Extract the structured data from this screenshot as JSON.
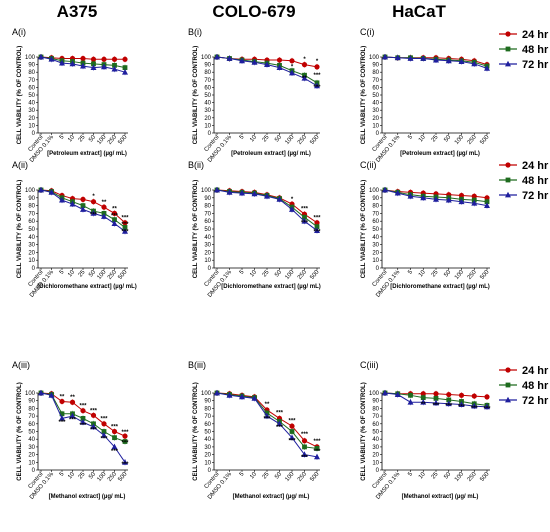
{
  "column_titles": [
    "A375",
    "COLO-679",
    "HaCaT"
  ],
  "legend": [
    {
      "label": "24 hr",
      "color": "#c00000",
      "marker": "circle"
    },
    {
      "label": "48 hr",
      "color": "#1e6b1e",
      "marker": "square"
    },
    {
      "label": "72 hr",
      "color": "#1f1f9e",
      "marker": "triangle"
    }
  ],
  "chart_data": [
    {
      "type": "line",
      "panel": "A(i)",
      "title": "A375",
      "ylabel": "CELL VIABILITY (% OF CONTROL)",
      "xlabel": "[Petroleum extract] (µg/ mL)",
      "categories": [
        "Control",
        "DMSO 0.1%",
        "5",
        "10",
        "25",
        "50",
        "100",
        "250",
        "500"
      ],
      "ylim": [
        0,
        100
      ],
      "yticks": [
        0,
        10,
        20,
        30,
        40,
        50,
        60,
        70,
        80,
        90,
        100
      ],
      "series": [
        {
          "name": "24 hr",
          "values": [
            100,
            99,
            98,
            98,
            98,
            97,
            97,
            97,
            97
          ]
        },
        {
          "name": "48 hr",
          "values": [
            100,
            98,
            95,
            94,
            92,
            91,
            90,
            89,
            86
          ]
        },
        {
          "name": "72 hr",
          "values": [
            100,
            97,
            92,
            91,
            88,
            86,
            87,
            84,
            80
          ]
        }
      ],
      "annotations": []
    },
    {
      "type": "line",
      "panel": "B(i)",
      "title": "COLO-679",
      "ylabel": "CELL VIABILITY (% OF CONTROL)",
      "xlabel": "[Petroleum extract] (µg/ mL)",
      "categories": [
        "Control",
        "DMSO 0.1%",
        "5",
        "10",
        "25",
        "50",
        "100",
        "250",
        "500"
      ],
      "ylim": [
        0,
        100
      ],
      "yticks": [
        0,
        10,
        20,
        30,
        40,
        50,
        60,
        70,
        80,
        90,
        100
      ],
      "series": [
        {
          "name": "24 hr",
          "values": [
            100,
            98,
            97,
            97,
            96,
            96,
            95,
            90,
            87
          ]
        },
        {
          "name": "48 hr",
          "values": [
            100,
            98,
            96,
            94,
            92,
            89,
            82,
            76,
            66
          ]
        },
        {
          "name": "72 hr",
          "values": [
            100,
            98,
            95,
            93,
            90,
            86,
            79,
            72,
            62
          ]
        }
      ],
      "annotations": [
        {
          "i": 6,
          "y": 85,
          "t": "*"
        },
        {
          "i": 7,
          "y": 95,
          "t": "*"
        },
        {
          "i": 7,
          "y": 70,
          "t": "**"
        },
        {
          "i": 8,
          "y": 92,
          "t": "*"
        },
        {
          "i": 8,
          "y": 74,
          "t": "***"
        },
        {
          "i": 8,
          "y": 58,
          "t": "***"
        }
      ]
    },
    {
      "type": "line",
      "panel": "C(i)",
      "title": "HaCaT",
      "ylabel": "CELL VIABILITY (% OF CONTROL)",
      "xlabel": "[Petroleum extract] (µg/ mL)",
      "categories": [
        "Control",
        "DMSO 0.1%",
        "5",
        "10",
        "25",
        "50",
        "100",
        "250",
        "500"
      ],
      "ylim": [
        0,
        100
      ],
      "yticks": [
        0,
        10,
        20,
        30,
        40,
        50,
        60,
        70,
        80,
        90,
        100
      ],
      "series": [
        {
          "name": "24 hr",
          "values": [
            100,
            99,
            99,
            99,
            99,
            98,
            97,
            95,
            90
          ]
        },
        {
          "name": "48 hr",
          "values": [
            100,
            99,
            99,
            98,
            97,
            96,
            95,
            93,
            88
          ]
        },
        {
          "name": "72 hr",
          "values": [
            100,
            99,
            98,
            98,
            96,
            95,
            94,
            91,
            85
          ]
        }
      ],
      "annotations": []
    },
    {
      "type": "line",
      "panel": "A(ii)",
      "title": "",
      "ylabel": "CELL VIABILITY (% OF CONTROL)",
      "xlabel": "[Dichloromethane extract] (µg/ mL)",
      "categories": [
        "Control",
        "DMSO 0.1%",
        "5",
        "10",
        "25",
        "50",
        "100",
        "250",
        "500"
      ],
      "ylim": [
        0,
        100
      ],
      "yticks": [
        0,
        10,
        20,
        30,
        40,
        50,
        60,
        70,
        80,
        90,
        100
      ],
      "series": [
        {
          "name": "24 hr",
          "values": [
            100,
            99,
            93,
            89,
            88,
            85,
            78,
            70,
            58
          ]
        },
        {
          "name": "48 hr",
          "values": [
            100,
            98,
            90,
            85,
            80,
            73,
            70,
            62,
            52
          ]
        },
        {
          "name": "72 hr",
          "values": [
            100,
            97,
            87,
            82,
            75,
            70,
            66,
            57,
            47
          ]
        }
      ],
      "annotations": [
        {
          "i": 5,
          "y": 90,
          "t": "*"
        },
        {
          "i": 6,
          "y": 82,
          "t": "**"
        },
        {
          "i": 7,
          "y": 74,
          "t": "**"
        },
        {
          "i": 7,
          "y": 65,
          "t": "***"
        },
        {
          "i": 8,
          "y": 62,
          "t": "***"
        },
        {
          "i": 8,
          "y": 54,
          "t": "***"
        },
        {
          "i": 8,
          "y": 44,
          "t": "***"
        },
        {
          "i": 5,
          "y": 66,
          "t": "***"
        }
      ]
    },
    {
      "type": "line",
      "panel": "B(ii)",
      "title": "",
      "ylabel": "CELL VIABILITY (% OF CONTROL)",
      "xlabel": "[Dichloromethane extract] (µg/ mL)",
      "categories": [
        "Control",
        "DMSO 0.1%",
        "5",
        "10",
        "25",
        "50",
        "100",
        "250",
        "500"
      ],
      "ylim": [
        0,
        100
      ],
      "yticks": [
        0,
        10,
        20,
        30,
        40,
        50,
        60,
        70,
        80,
        90,
        100
      ],
      "series": [
        {
          "name": "24 hr",
          "values": [
            100,
            99,
            98,
            97,
            94,
            90,
            82,
            69,
            58
          ]
        },
        {
          "name": "48 hr",
          "values": [
            100,
            98,
            97,
            96,
            93,
            89,
            78,
            65,
            53
          ]
        },
        {
          "name": "72 hr",
          "values": [
            100,
            97,
            96,
            95,
            92,
            88,
            75,
            60,
            48
          ]
        }
      ],
      "annotations": [
        {
          "i": 6,
          "y": 86,
          "t": "*"
        },
        {
          "i": 7,
          "y": 74,
          "t": "***"
        },
        {
          "i": 7,
          "y": 56,
          "t": "***"
        },
        {
          "i": 8,
          "y": 62,
          "t": "***"
        },
        {
          "i": 8,
          "y": 44,
          "t": "***"
        }
      ]
    },
    {
      "type": "line",
      "panel": "C(ii)",
      "title": "",
      "ylabel": "CELL VIABILITY (% OF CONTROL)",
      "xlabel": "[Dichloromethane extract] (µg/ mL)",
      "categories": [
        "Control",
        "DMSO 0.1%",
        "5",
        "10",
        "25",
        "50",
        "100",
        "250",
        "500"
      ],
      "ylim": [
        0,
        100
      ],
      "yticks": [
        0,
        10,
        20,
        30,
        40,
        50,
        60,
        70,
        80,
        90,
        100
      ],
      "series": [
        {
          "name": "24 hr",
          "values": [
            100,
            98,
            97,
            96,
            95,
            94,
            93,
            92,
            90
          ]
        },
        {
          "name": "48 hr",
          "values": [
            100,
            97,
            94,
            92,
            91,
            90,
            88,
            87,
            85
          ]
        },
        {
          "name": "72 hr",
          "values": [
            100,
            96,
            92,
            90,
            88,
            87,
            85,
            83,
            80
          ]
        }
      ],
      "annotations": []
    },
    {
      "type": "line",
      "panel": "A(iii)",
      "title": "",
      "ylabel": "CELL VIABILITY (% OF CONTROL)",
      "xlabel": "[Methanol extract] (µg/ mL)",
      "categories": [
        "Control",
        "DMSO 0.1%",
        "5",
        "10",
        "25",
        "50",
        "100",
        "250",
        "500"
      ],
      "ylim": [
        0,
        100
      ],
      "yticks": [
        0,
        10,
        20,
        30,
        40,
        50,
        60,
        70,
        80,
        90,
        100
      ],
      "series": [
        {
          "name": "24 hr",
          "values": [
            100,
            99,
            89,
            88,
            77,
            71,
            60,
            50,
            44
          ]
        },
        {
          "name": "48 hr",
          "values": [
            100,
            98,
            73,
            73,
            67,
            60,
            50,
            42,
            37
          ]
        },
        {
          "name": "72 hr",
          "values": [
            100,
            97,
            67,
            70,
            62,
            56,
            45,
            30,
            10
          ]
        }
      ],
      "annotations": [
        {
          "i": 2,
          "y": 93,
          "t": "**"
        },
        {
          "i": 3,
          "y": 92,
          "t": "**"
        },
        {
          "i": 4,
          "y": 81,
          "t": "***"
        },
        {
          "i": 5,
          "y": 75,
          "t": "***"
        },
        {
          "i": 6,
          "y": 64,
          "t": "***"
        },
        {
          "i": 7,
          "y": 54,
          "t": "***"
        },
        {
          "i": 8,
          "y": 47,
          "t": "***"
        },
        {
          "i": 2,
          "y": 60,
          "t": "***"
        },
        {
          "i": 3,
          "y": 63,
          "t": "***"
        },
        {
          "i": 4,
          "y": 56,
          "t": "***"
        },
        {
          "i": 5,
          "y": 50,
          "t": "***"
        },
        {
          "i": 6,
          "y": 38,
          "t": "***"
        },
        {
          "i": 7,
          "y": 22,
          "t": "***"
        },
        {
          "i": 8,
          "y": 5,
          "t": "***"
        },
        {
          "i": 8,
          "y": 33,
          "t": "***"
        }
      ]
    },
    {
      "type": "line",
      "panel": "B(iii)",
      "title": "",
      "ylabel": "CELL VIABILITY (% OF CONTROL)",
      "xlabel": "[Methanol extract] (µg/ mL)",
      "categories": [
        "Control",
        "DMSO 0.1%",
        "5",
        "10",
        "25",
        "50",
        "100",
        "250",
        "500"
      ],
      "ylim": [
        0,
        100
      ],
      "yticks": [
        0,
        10,
        20,
        30,
        40,
        50,
        60,
        70,
        80,
        90,
        100
      ],
      "series": [
        {
          "name": "24 hr",
          "values": [
            100,
            99,
            97,
            95,
            78,
            67,
            57,
            38,
            30
          ]
        },
        {
          "name": "48 hr",
          "values": [
            100,
            98,
            96,
            94,
            74,
            63,
            50,
            30,
            28
          ]
        },
        {
          "name": "72 hr",
          "values": [
            100,
            97,
            95,
            93,
            70,
            60,
            42,
            20,
            17
          ]
        }
      ],
      "annotations": [
        {
          "i": 4,
          "y": 83,
          "t": "**"
        },
        {
          "i": 5,
          "y": 72,
          "t": "***"
        },
        {
          "i": 6,
          "y": 62,
          "t": "***"
        },
        {
          "i": 7,
          "y": 44,
          "t": "***"
        },
        {
          "i": 8,
          "y": 35,
          "t": "***"
        },
        {
          "i": 4,
          "y": 64,
          "t": "***"
        },
        {
          "i": 5,
          "y": 53,
          "t": "***"
        },
        {
          "i": 6,
          "y": 36,
          "t": "***"
        },
        {
          "i": 7,
          "y": 14,
          "t": "***"
        },
        {
          "i": 8,
          "y": 22,
          "t": "***"
        }
      ]
    },
    {
      "type": "line",
      "panel": "C(iii)",
      "title": "",
      "ylabel": "CELL VIABILITY (% OF CONTROL)",
      "xlabel": "[Methanol extract] (µg/ mL)",
      "categories": [
        "Control",
        "DMSO 0.1%",
        "5",
        "10",
        "25",
        "50",
        "100",
        "250",
        "500"
      ],
      "ylim": [
        0,
        100
      ],
      "yticks": [
        0,
        10,
        20,
        30,
        40,
        50,
        60,
        70,
        80,
        90,
        100
      ],
      "series": [
        {
          "name": "24 hr",
          "values": [
            100,
            99,
            99,
            99,
            99,
            98,
            97,
            96,
            95
          ]
        },
        {
          "name": "48 hr",
          "values": [
            100,
            99,
            97,
            94,
            93,
            91,
            89,
            86,
            84
          ]
        },
        {
          "name": "72 hr",
          "values": [
            100,
            98,
            88,
            88,
            87,
            86,
            85,
            83,
            82
          ]
        }
      ],
      "annotations": [
        {
          "i": 3,
          "y": 83,
          "t": "**"
        },
        {
          "i": 4,
          "y": 82,
          "t": "***"
        },
        {
          "i": 5,
          "y": 81,
          "t": "***"
        },
        {
          "i": 6,
          "y": 80,
          "t": "***"
        },
        {
          "i": 7,
          "y": 78,
          "t": "***"
        },
        {
          "i": 8,
          "y": 77,
          "t": "***"
        }
      ]
    }
  ]
}
